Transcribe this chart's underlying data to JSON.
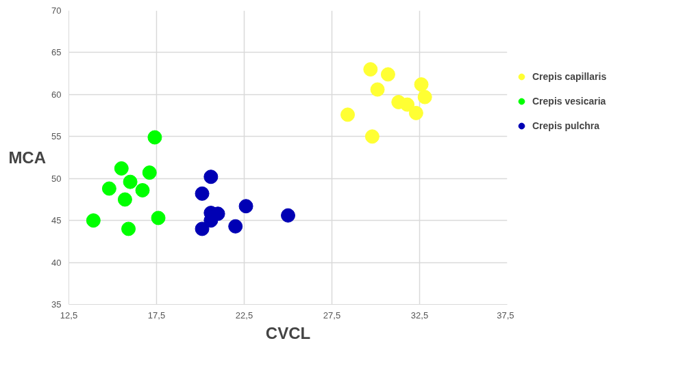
{
  "chart_data": {
    "type": "scatter",
    "xlabel": "CVCL",
    "ylabel": "MCA",
    "xlim": [
      12.5,
      37.5
    ],
    "xticks": [
      {
        "value": 12.5,
        "label": "12,5"
      },
      {
        "value": 17.5,
        "label": "17,5"
      },
      {
        "value": 22.5,
        "label": "22,5"
      },
      {
        "value": 27.5,
        "label": "27,5"
      },
      {
        "value": 32.5,
        "label": "32,5"
      },
      {
        "value": 37.5,
        "label": "37,5"
      }
    ],
    "ylim": [
      35,
      70
    ],
    "yticks": [
      35,
      40,
      45,
      50,
      55,
      60,
      65,
      70
    ],
    "grid": true,
    "legend": "right",
    "marker": "circle",
    "series": [
      {
        "name": "Crepis capillaris",
        "color": "#ffff33",
        "x": [
          28.4,
          29.7,
          29.8,
          30.1,
          30.7,
          31.3,
          31.8,
          32.3,
          32.6,
          32.8
        ],
        "values": [
          57.6,
          63.0,
          55.0,
          60.6,
          62.4,
          59.1,
          58.8,
          57.8,
          61.2,
          59.7
        ]
      },
      {
        "name": "Crepis vesicaria",
        "color": "#00ff00",
        "x": [
          13.9,
          14.8,
          15.5,
          15.7,
          16.0,
          15.9,
          16.7,
          17.1,
          17.4,
          17.6
        ],
        "values": [
          45.0,
          48.8,
          51.2,
          47.5,
          49.6,
          44.0,
          48.6,
          50.7,
          54.9,
          45.3
        ]
      },
      {
        "name": "Crepis pulchra",
        "color": "#0000b4",
        "x": [
          20.1,
          20.6,
          20.1,
          20.6,
          20.6,
          21.0,
          22.0,
          22.6,
          25.0
        ],
        "values": [
          48.2,
          50.2,
          44.0,
          45.9,
          45.0,
          45.8,
          44.3,
          46.7,
          45.6
        ]
      }
    ]
  }
}
